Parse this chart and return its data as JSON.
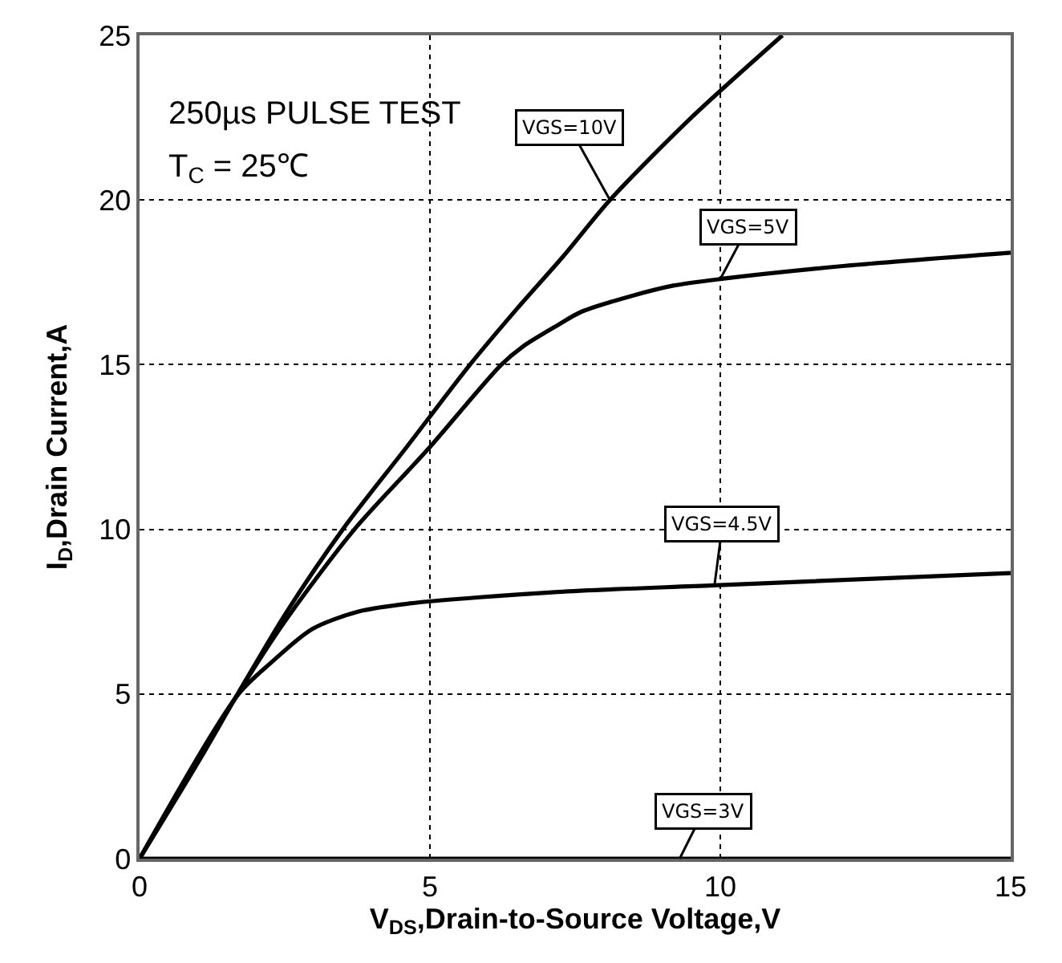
{
  "chart_data": {
    "type": "line",
    "xlabel": "V$_{DS}$,Drain-to-Source Voltage,V",
    "ylabel": "I$_{D}$,Drain Current,A",
    "xlim": [
      0,
      15
    ],
    "xticks": [
      0,
      5,
      10,
      15
    ],
    "ylim": [
      0,
      25
    ],
    "yticks": [
      0,
      5,
      10,
      15,
      20,
      25
    ],
    "grid": true,
    "marker": "none",
    "line_style": "solid",
    "series": [
      {
        "color": "#000000",
        "x": [
          0,
          1,
          1.69,
          2.5,
          3.5,
          4.6,
          5.69,
          6.5,
          7.3,
          8.1,
          9.5,
          11.07
        ],
        "values": [
          0,
          2.9,
          5,
          7.4,
          10,
          12.5,
          15,
          16.7,
          18.3,
          20,
          22.5,
          25
        ]
      },
      {
        "color": "#000000",
        "x": [
          0,
          1.69,
          2.5,
          3.7,
          4.95,
          6.23,
          6.6,
          7.2,
          7.6,
          8.5,
          9.19,
          10,
          12.15,
          15
        ],
        "values": [
          0,
          5,
          7.2,
          10,
          12.4,
          15,
          15.55,
          16.2,
          16.6,
          17.1,
          17.4,
          17.6,
          18,
          18.4
        ]
      },
      {
        "color": "#000000",
        "x": [
          0,
          1.69,
          2.27,
          2.97,
          3.76,
          4.65,
          7.2,
          9.9,
          15
        ],
        "values": [
          0,
          4.97,
          5.96,
          6.97,
          7.5,
          7.75,
          8.1,
          8.3,
          8.67
        ]
      },
      {
        "color": "#000000",
        "x": [
          0,
          5,
          10,
          15
        ],
        "values": [
          0,
          0,
          0,
          0
        ]
      }
    ],
    "annotations": [
      "250µs PULSE TEST",
      "T$_{C}$ = 25℃",
      {
        "text": "VGS=10V",
        "x": 8.1,
        "y": 20
      },
      {
        "text": "VGS=5V",
        "x": 10,
        "y": 17.6
      },
      {
        "text": "VGS=4.5V",
        "x": 9.9,
        "y": 8.3
      },
      {
        "text": "VGS=3V",
        "x": 9.3,
        "y": 0
      }
    ]
  }
}
